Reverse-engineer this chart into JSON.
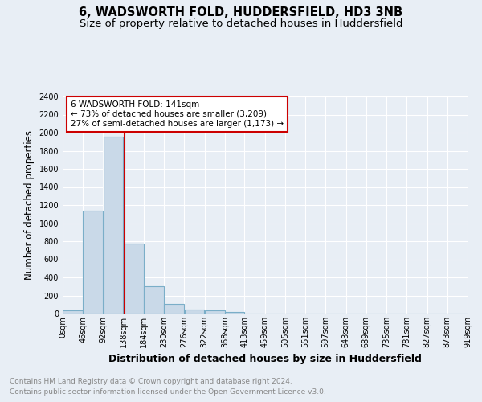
{
  "title": "6, WADSWORTH FOLD, HUDDERSFIELD, HD3 3NB",
  "subtitle": "Size of property relative to detached houses in Huddersfield",
  "xlabel": "Distribution of detached houses by size in Huddersfield",
  "ylabel": "Number of detached properties",
  "footer_line1": "Contains HM Land Registry data © Crown copyright and database right 2024.",
  "footer_line2": "Contains public sector information licensed under the Open Government Licence v3.0.",
  "bar_edges": [
    0,
    46,
    92,
    138,
    184,
    230,
    276,
    322,
    368,
    413,
    459,
    505,
    551,
    597,
    643,
    689,
    735,
    781,
    827,
    873,
    919
  ],
  "bar_heights": [
    35,
    1140,
    1960,
    770,
    300,
    105,
    47,
    35,
    22,
    0,
    0,
    0,
    0,
    0,
    0,
    0,
    0,
    0,
    0,
    0
  ],
  "bar_color": "#c9d9e8",
  "bar_edge_color": "#7aaec8",
  "bar_linewidth": 0.8,
  "vline_x": 141,
  "vline_color": "#cc0000",
  "vline_linewidth": 1.5,
  "annotation_text": "6 WADSWORTH FOLD: 141sqm\n← 73% of detached houses are smaller (3,209)\n27% of semi-detached houses are larger (1,173) →",
  "annotation_box_color": "#ffffff",
  "annotation_box_edge_color": "#cc0000",
  "ylim": [
    0,
    2400
  ],
  "yticks": [
    0,
    200,
    400,
    600,
    800,
    1000,
    1200,
    1400,
    1600,
    1800,
    2000,
    2200,
    2400
  ],
  "xtick_labels": [
    "0sqm",
    "46sqm",
    "92sqm",
    "138sqm",
    "184sqm",
    "230sqm",
    "276sqm",
    "322sqm",
    "368sqm",
    "413sqm",
    "459sqm",
    "505sqm",
    "551sqm",
    "597sqm",
    "643sqm",
    "689sqm",
    "735sqm",
    "781sqm",
    "827sqm",
    "873sqm",
    "919sqm"
  ],
  "bg_color": "#e8eef5",
  "plot_bg_color": "#e8eef5",
  "grid_color": "#ffffff",
  "title_fontsize": 10.5,
  "subtitle_fontsize": 9.5,
  "xlabel_fontsize": 9,
  "ylabel_fontsize": 8.5,
  "tick_fontsize": 7,
  "annotation_fontsize": 7.5,
  "footer_fontsize": 6.5
}
